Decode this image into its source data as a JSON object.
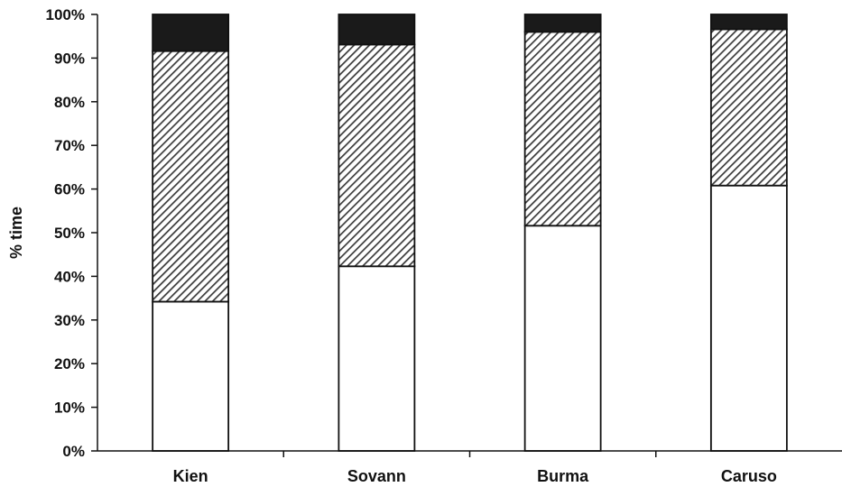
{
  "chart_data": {
    "type": "bar",
    "stacked": true,
    "title": "",
    "xlabel": "",
    "ylabel": "% time",
    "ylim": [
      0,
      100
    ],
    "yticks": [
      "0%",
      "10%",
      "20%",
      "30%",
      "40%",
      "50%",
      "60%",
      "70%",
      "80%",
      "90%",
      "100%"
    ],
    "grid": false,
    "legend": "none",
    "categories": [
      "Kien",
      "Sovann",
      "Burma",
      "Caruso"
    ],
    "series": [
      {
        "fill": "white",
        "color": "#ffffff",
        "values": [
          34.2,
          42.3,
          51.6,
          60.8
        ]
      },
      {
        "fill": "diagonal-hatch",
        "color": "#555555",
        "values": [
          57.4,
          50.8,
          44.4,
          35.8
        ]
      },
      {
        "fill": "solid-black",
        "color": "#1a1a1a",
        "values": [
          8.4,
          6.9,
          4.0,
          3.4
        ]
      }
    ]
  }
}
